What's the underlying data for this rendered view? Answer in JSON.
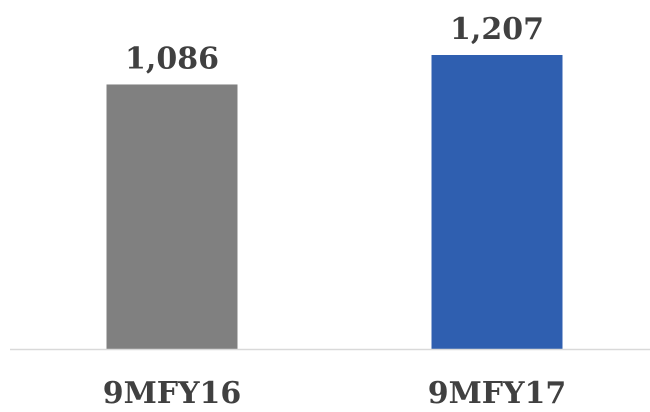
{
  "chart_data": {
    "type": "bar",
    "categories": [
      "9MFY16",
      "9MFY17"
    ],
    "values": [
      1086,
      1207
    ],
    "data_labels": [
      "1,086",
      "1,207"
    ],
    "colors": [
      "#808080",
      "#2f5fb0"
    ],
    "axis_color": "#d9d9d9",
    "text_color": "#404040",
    "title": "",
    "xlabel": "",
    "ylabel": "",
    "grid": false,
    "legend": "none"
  }
}
